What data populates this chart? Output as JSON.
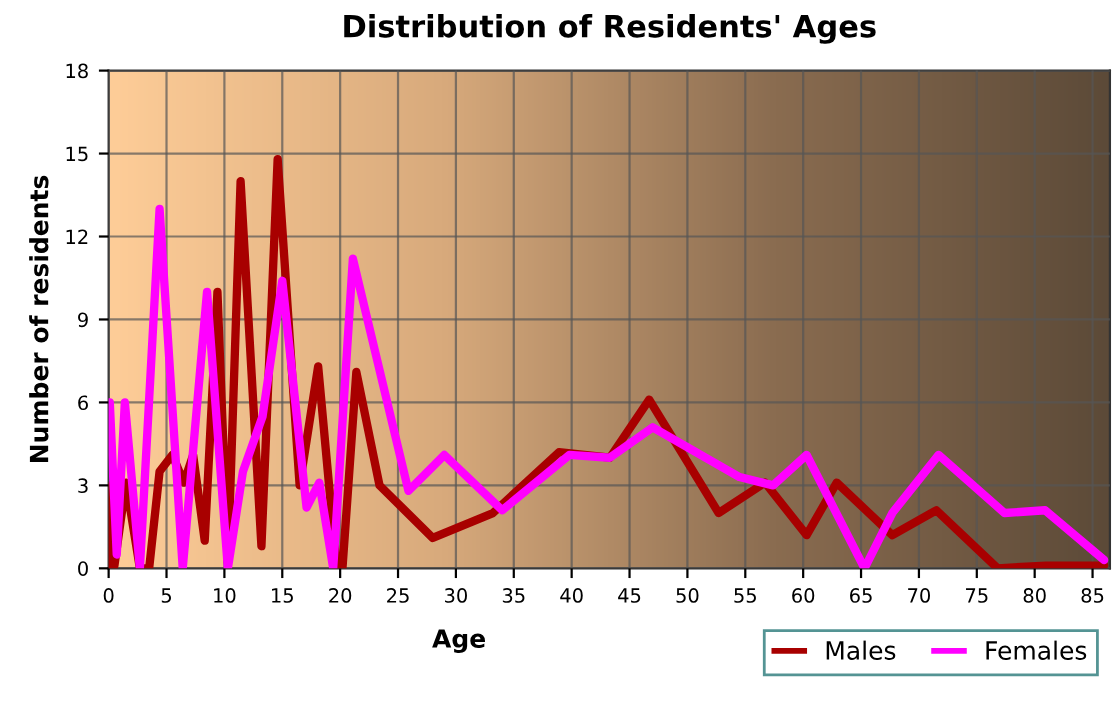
{
  "chart_data": {
    "type": "line",
    "title": "Distribution of Residents' Ages",
    "xlabel": "Age",
    "ylabel": "Number of residents",
    "xlim": [
      0,
      86.5
    ],
    "xticks": [
      0,
      5,
      10,
      15,
      20,
      25,
      30,
      35,
      40,
      45,
      50,
      55,
      60,
      65,
      70,
      75,
      80,
      85
    ],
    "ylim": [
      0,
      18
    ],
    "yticks": [
      0,
      3,
      6,
      9,
      12,
      15,
      18
    ],
    "grid": true,
    "legend": "bottom right",
    "marker": "none",
    "line_style": "solid",
    "series": [
      {
        "name": "Males",
        "color": "#a80000",
        "x": [
          0,
          0.2,
          0.5,
          1.5,
          2.7,
          3.5,
          4.4,
          5.5,
          6.5,
          7.3,
          8.3,
          9.4,
          10.3,
          11.4,
          13.2,
          14.6,
          16.5,
          18.1,
          19.7,
          20.2,
          21.4,
          23.4,
          28,
          33.2,
          38.9,
          43.3,
          46.7,
          52.7,
          56.7,
          60.3,
          62.9,
          67.7,
          71.5,
          76.8,
          81,
          86
        ],
        "values": [
          0,
          3,
          0.1,
          3.1,
          0,
          0,
          3.5,
          4.1,
          3.1,
          4.1,
          1,
          10,
          0.2,
          14,
          0.8,
          14.8,
          3,
          7.3,
          0,
          0,
          7.1,
          3,
          1.1,
          2,
          4.2,
          4,
          6.1,
          2,
          3.1,
          1.2,
          3.1,
          1.2,
          2.1,
          0,
          0.1,
          0.1
        ]
      },
      {
        "name": "Females",
        "color": "#ff00ff",
        "x": [
          0,
          0.1,
          0.7,
          1.4,
          2.7,
          4.4,
          6.4,
          8.5,
          10.3,
          11.6,
          13.3,
          15,
          17.1,
          18.2,
          19.4,
          21.1,
          25.9,
          29,
          34,
          39.8,
          43.3,
          47,
          54.5,
          57.4,
          60.3,
          65.3,
          67.7,
          71.7,
          77.4,
          80.9,
          86
        ],
        "values": [
          6,
          6,
          0.5,
          6,
          0,
          13,
          0,
          10,
          0,
          3.5,
          5.5,
          10.4,
          2.2,
          3.1,
          0,
          11.2,
          2.8,
          4.1,
          2.1,
          4.1,
          4,
          5.1,
          3.3,
          3,
          4.1,
          0,
          2,
          4.1,
          2,
          2.1,
          0.3
        ]
      }
    ]
  }
}
